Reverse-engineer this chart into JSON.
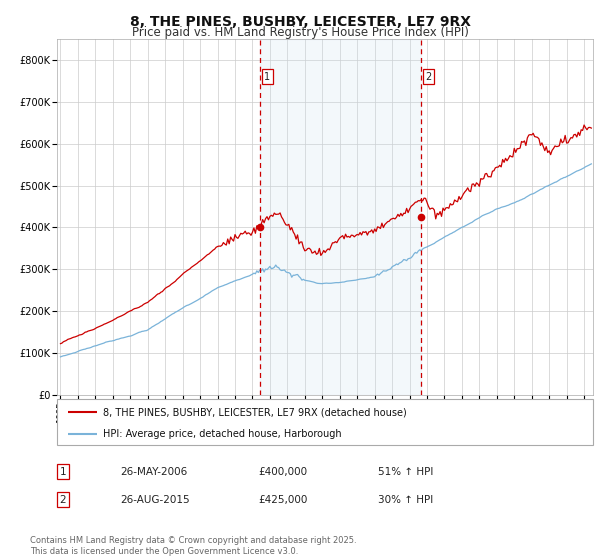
{
  "title": "8, THE PINES, BUSHBY, LEICESTER, LE7 9RX",
  "subtitle": "Price paid vs. HM Land Registry's House Price Index (HPI)",
  "title_fontsize": 10,
  "subtitle_fontsize": 8.5,
  "background_color": "#ffffff",
  "plot_bg_color": "#ffffff",
  "grid_color": "#cccccc",
  "hpi_line_color": "#7ab3d9",
  "price_line_color": "#cc0000",
  "shade_color": "#cce0f0",
  "vline_color": "#cc0000",
  "marker_color": "#cc0000",
  "ylim": [
    0,
    850000
  ],
  "yticks": [
    0,
    100000,
    200000,
    300000,
    400000,
    500000,
    600000,
    700000,
    800000
  ],
  "ytick_labels": [
    "£0",
    "£100K",
    "£200K",
    "£300K",
    "£400K",
    "£500K",
    "£600K",
    "£700K",
    "£800K"
  ],
  "xmin_year": 1995,
  "xmax_year": 2025.5,
  "xtick_years": [
    1995,
    1996,
    1997,
    1998,
    1999,
    2000,
    2001,
    2002,
    2003,
    2004,
    2005,
    2006,
    2007,
    2008,
    2009,
    2010,
    2011,
    2012,
    2013,
    2014,
    2015,
    2016,
    2017,
    2018,
    2019,
    2020,
    2021,
    2022,
    2023,
    2024,
    2025
  ],
  "sale1_year": 2006.42,
  "sale1_price": 400000,
  "sale1_label": "1",
  "sale2_year": 2015.65,
  "sale2_price": 425000,
  "sale2_label": "2",
  "shade_x1": 2006.42,
  "shade_x2": 2015.65,
  "legend_line1": "8, THE PINES, BUSHBY, LEICESTER, LE7 9RX (detached house)",
  "legend_line2": "HPI: Average price, detached house, Harborough",
  "table_rows": [
    {
      "num": "1",
      "date": "26-MAY-2006",
      "price": "£400,000",
      "hpi": "51% ↑ HPI"
    },
    {
      "num": "2",
      "date": "26-AUG-2015",
      "price": "£425,000",
      "hpi": "30% ↑ HPI"
    }
  ],
  "footnote": "Contains HM Land Registry data © Crown copyright and database right 2025.\nThis data is licensed under the Open Government Licence v3.0.",
  "footnote_fontsize": 6.0
}
